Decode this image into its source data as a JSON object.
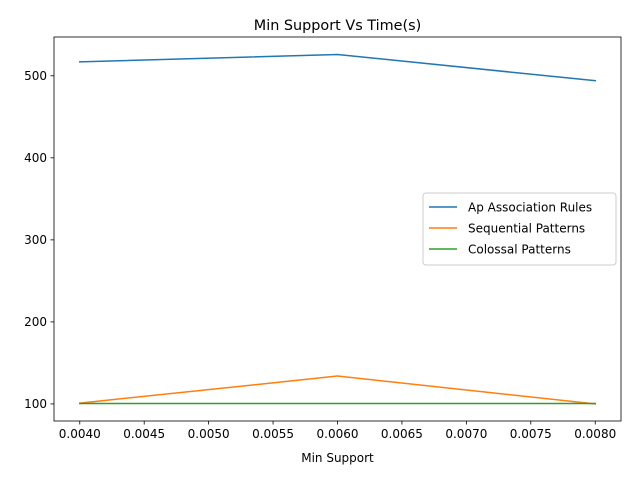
{
  "chart_data": {
    "type": "line",
    "title": "Min Support Vs Time(s)",
    "xlabel": "Min Support",
    "ylabel": "",
    "x": [
      0.004,
      0.006,
      0.008
    ],
    "series": [
      {
        "name": "Ap Association Rules",
        "values": [
          517,
          526,
          494
        ],
        "color": "#1f77b4"
      },
      {
        "name": "Sequential Patterns",
        "values": [
          101,
          134,
          100
        ],
        "color": "#ff7f0e"
      },
      {
        "name": "Colossal Patterns",
        "values": [
          100.5,
          100.5,
          100.5
        ],
        "color": "#2ca02c"
      }
    ],
    "xlim": [
      0.0038,
      0.0082
    ],
    "ylim": [
      79.2,
      547.3
    ],
    "xticks": [
      0.004,
      0.0045,
      0.005,
      0.0055,
      0.006,
      0.0065,
      0.007,
      0.0075,
      0.008
    ],
    "xtick_labels": [
      "0.0040",
      "0.0045",
      "0.0050",
      "0.0055",
      "0.0060",
      "0.0065",
      "0.0070",
      "0.0075",
      "0.0080"
    ],
    "yticks": [
      100,
      200,
      300,
      400,
      500
    ],
    "ytick_labels": [
      "100",
      "200",
      "300",
      "400",
      "500"
    ],
    "grid": false,
    "legend_position": "center-right"
  }
}
